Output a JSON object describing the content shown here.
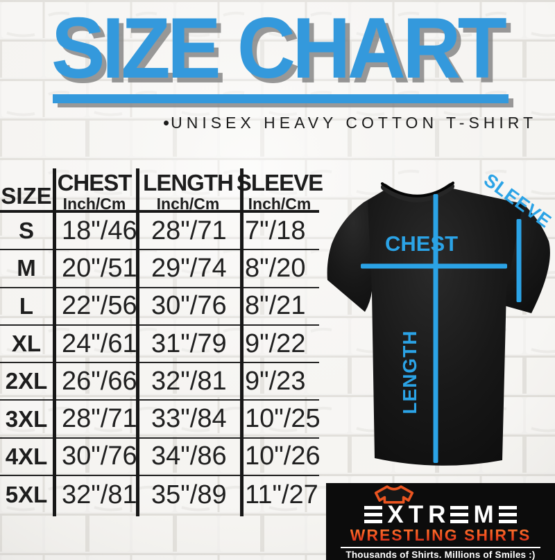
{
  "title": {
    "text": "SIZE CHART"
  },
  "subtitle": {
    "bullet": "•",
    "text": "UNISEX HEAVY COTTON T-SHIRT"
  },
  "table": {
    "size_header": "SIZE",
    "columns": [
      {
        "label": "CHEST",
        "unit": "Inch/Cm"
      },
      {
        "label": "LENGTH",
        "unit": "Inch/Cm"
      },
      {
        "label": "SLEEVE",
        "unit": "Inch/Cm"
      }
    ],
    "rows": [
      {
        "size": "S",
        "chest": "18\"/46",
        "length": "28\"/71",
        "sleeve": "7\"/18"
      },
      {
        "size": "M",
        "chest": "20\"/51",
        "length": "29\"/74",
        "sleeve": "8\"/20"
      },
      {
        "size": "L",
        "chest": "22\"/56",
        "length": "30\"/76",
        "sleeve": "8\"/21"
      },
      {
        "size": "XL",
        "chest": "24\"/61",
        "length": "31\"/79",
        "sleeve": "9\"/22"
      },
      {
        "size": "2XL",
        "chest": "26\"/66",
        "length": "32\"/81",
        "sleeve": "9\"/23"
      },
      {
        "size": "3XL",
        "chest": "28\"/71",
        "length": "33\"/84",
        "sleeve": "10\"/25"
      },
      {
        "size": "4XL",
        "chest": "30\"/76",
        "length": "34\"/86",
        "sleeve": "10\"/26"
      },
      {
        "size": "5XL",
        "chest": "32\"/81",
        "length": "35\"/89",
        "sleeve": "11\"/27"
      }
    ]
  },
  "diagram": {
    "chest_label": "CHEST",
    "length_label": "LENGTH",
    "sleeve_label": "SLEEVE"
  },
  "logo": {
    "brand": "EXTREME",
    "brand_sub": "WRESTLING SHIRTS",
    "tagline": "Thousands of Shirts. Millions of Smiles :)"
  },
  "colors": {
    "accent_blue": "#3499dc",
    "line_blue": "#2ba3e6",
    "text_dark": "#1d1d1d",
    "logo_orange": "#ea5420",
    "logo_red": "#c62020",
    "shadow_gray": "#8f8f8f"
  },
  "chart_data": {
    "type": "table",
    "title": "SIZE CHART",
    "subtitle": "UNISEX HEAVY COTTON T-SHIRT",
    "columns": [
      "SIZE",
      "CHEST Inch/Cm",
      "LENGTH Inch/Cm",
      "SLEEVE Inch/Cm"
    ],
    "rows": [
      [
        "S",
        "18\"/46",
        "28\"/71",
        "7\"/18"
      ],
      [
        "M",
        "20\"/51",
        "29\"/74",
        "8\"/20"
      ],
      [
        "L",
        "22\"/56",
        "30\"/76",
        "8\"/21"
      ],
      [
        "XL",
        "24\"/61",
        "31\"/79",
        "9\"/22"
      ],
      [
        "2XL",
        "26\"/66",
        "32\"/81",
        "9\"/23"
      ],
      [
        "3XL",
        "28\"/71",
        "33\"/84",
        "10\"/25"
      ],
      [
        "4XL",
        "30\"/76",
        "34\"/86",
        "10\"/26"
      ],
      [
        "5XL",
        "32\"/81",
        "35\"/89",
        "11\"/27"
      ]
    ]
  }
}
